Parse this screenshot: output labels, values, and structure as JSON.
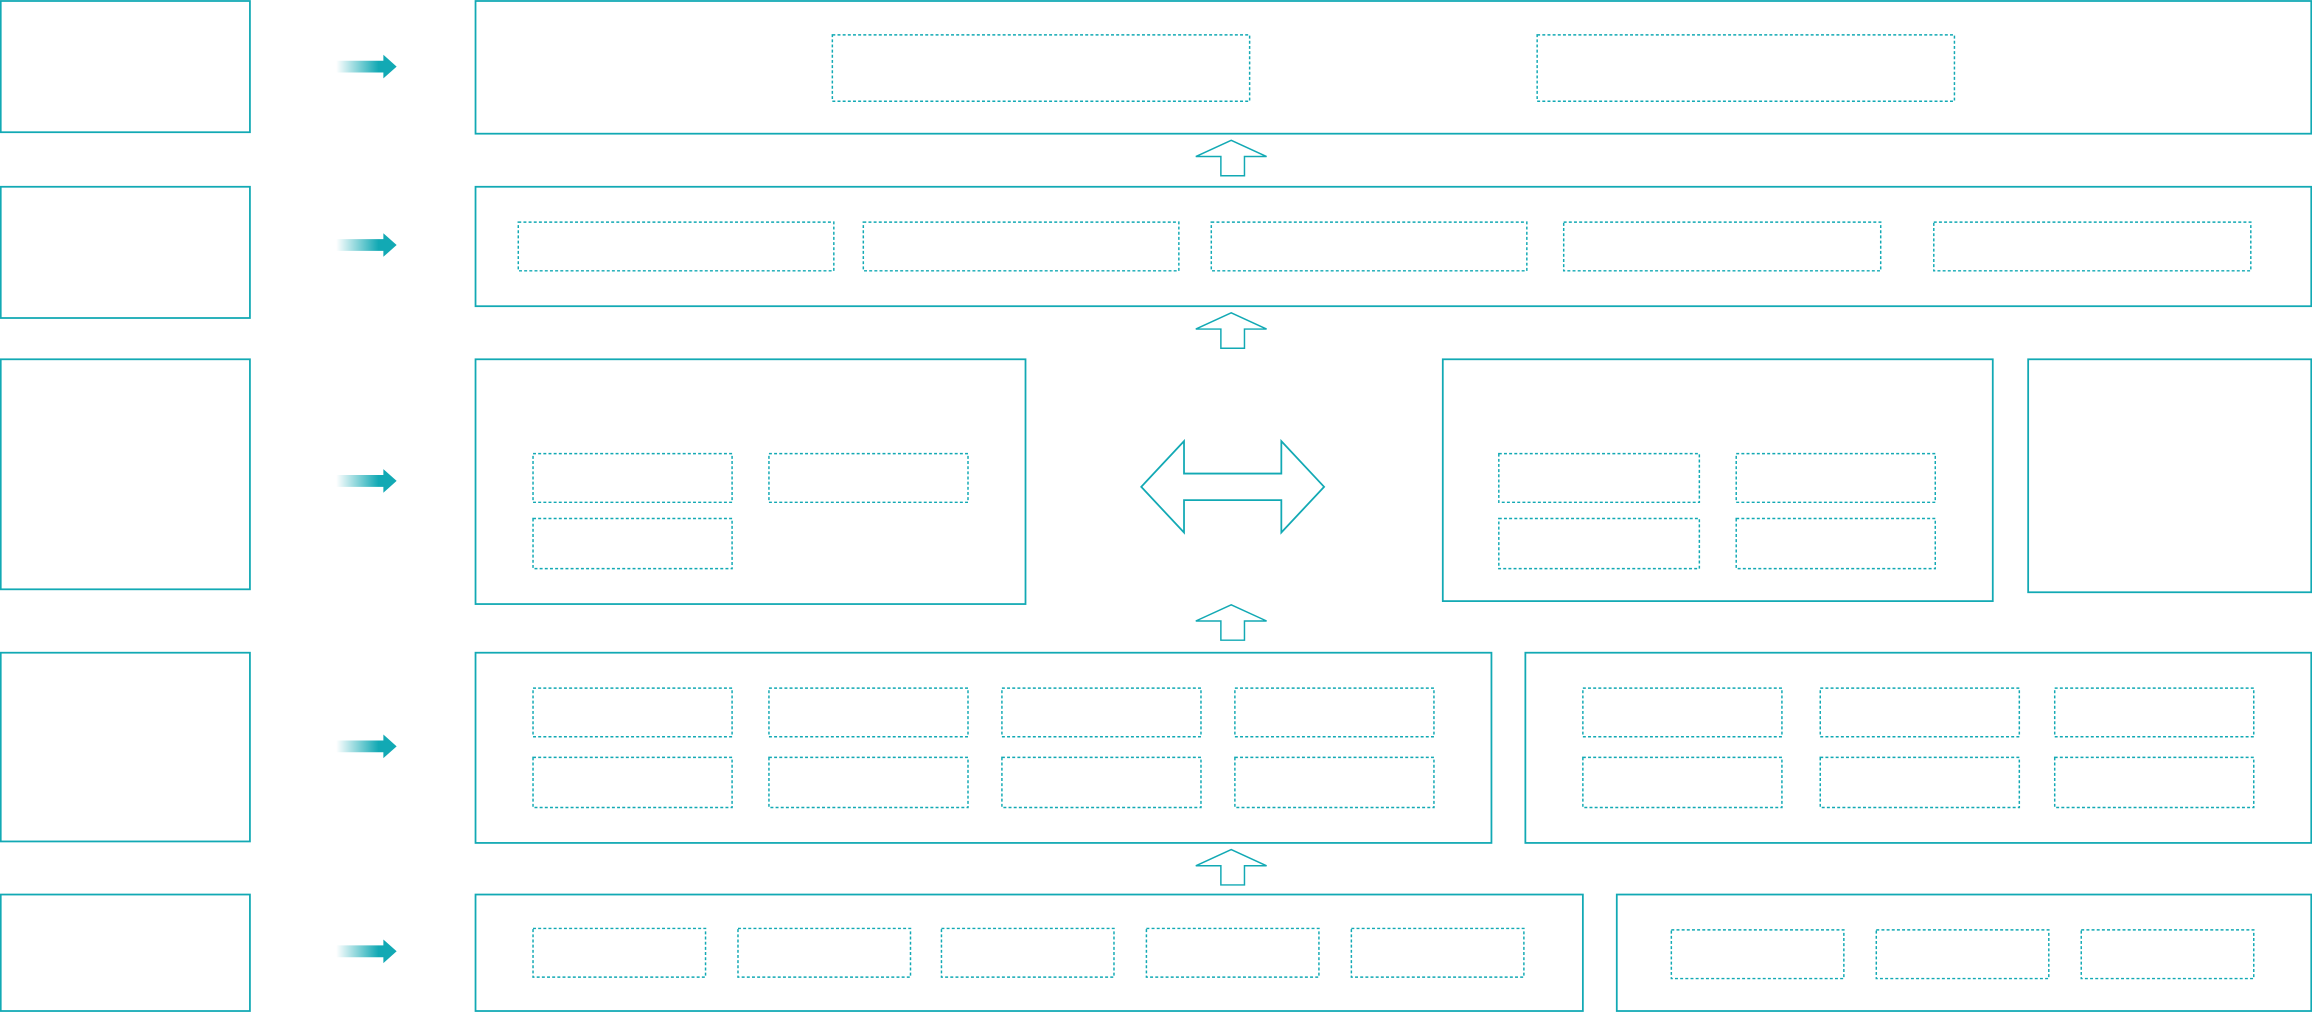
{
  "colors": {
    "accent": "#12a9b4",
    "background": "#ffffff"
  },
  "diagram": {
    "layers": 5,
    "text": []
  }
}
